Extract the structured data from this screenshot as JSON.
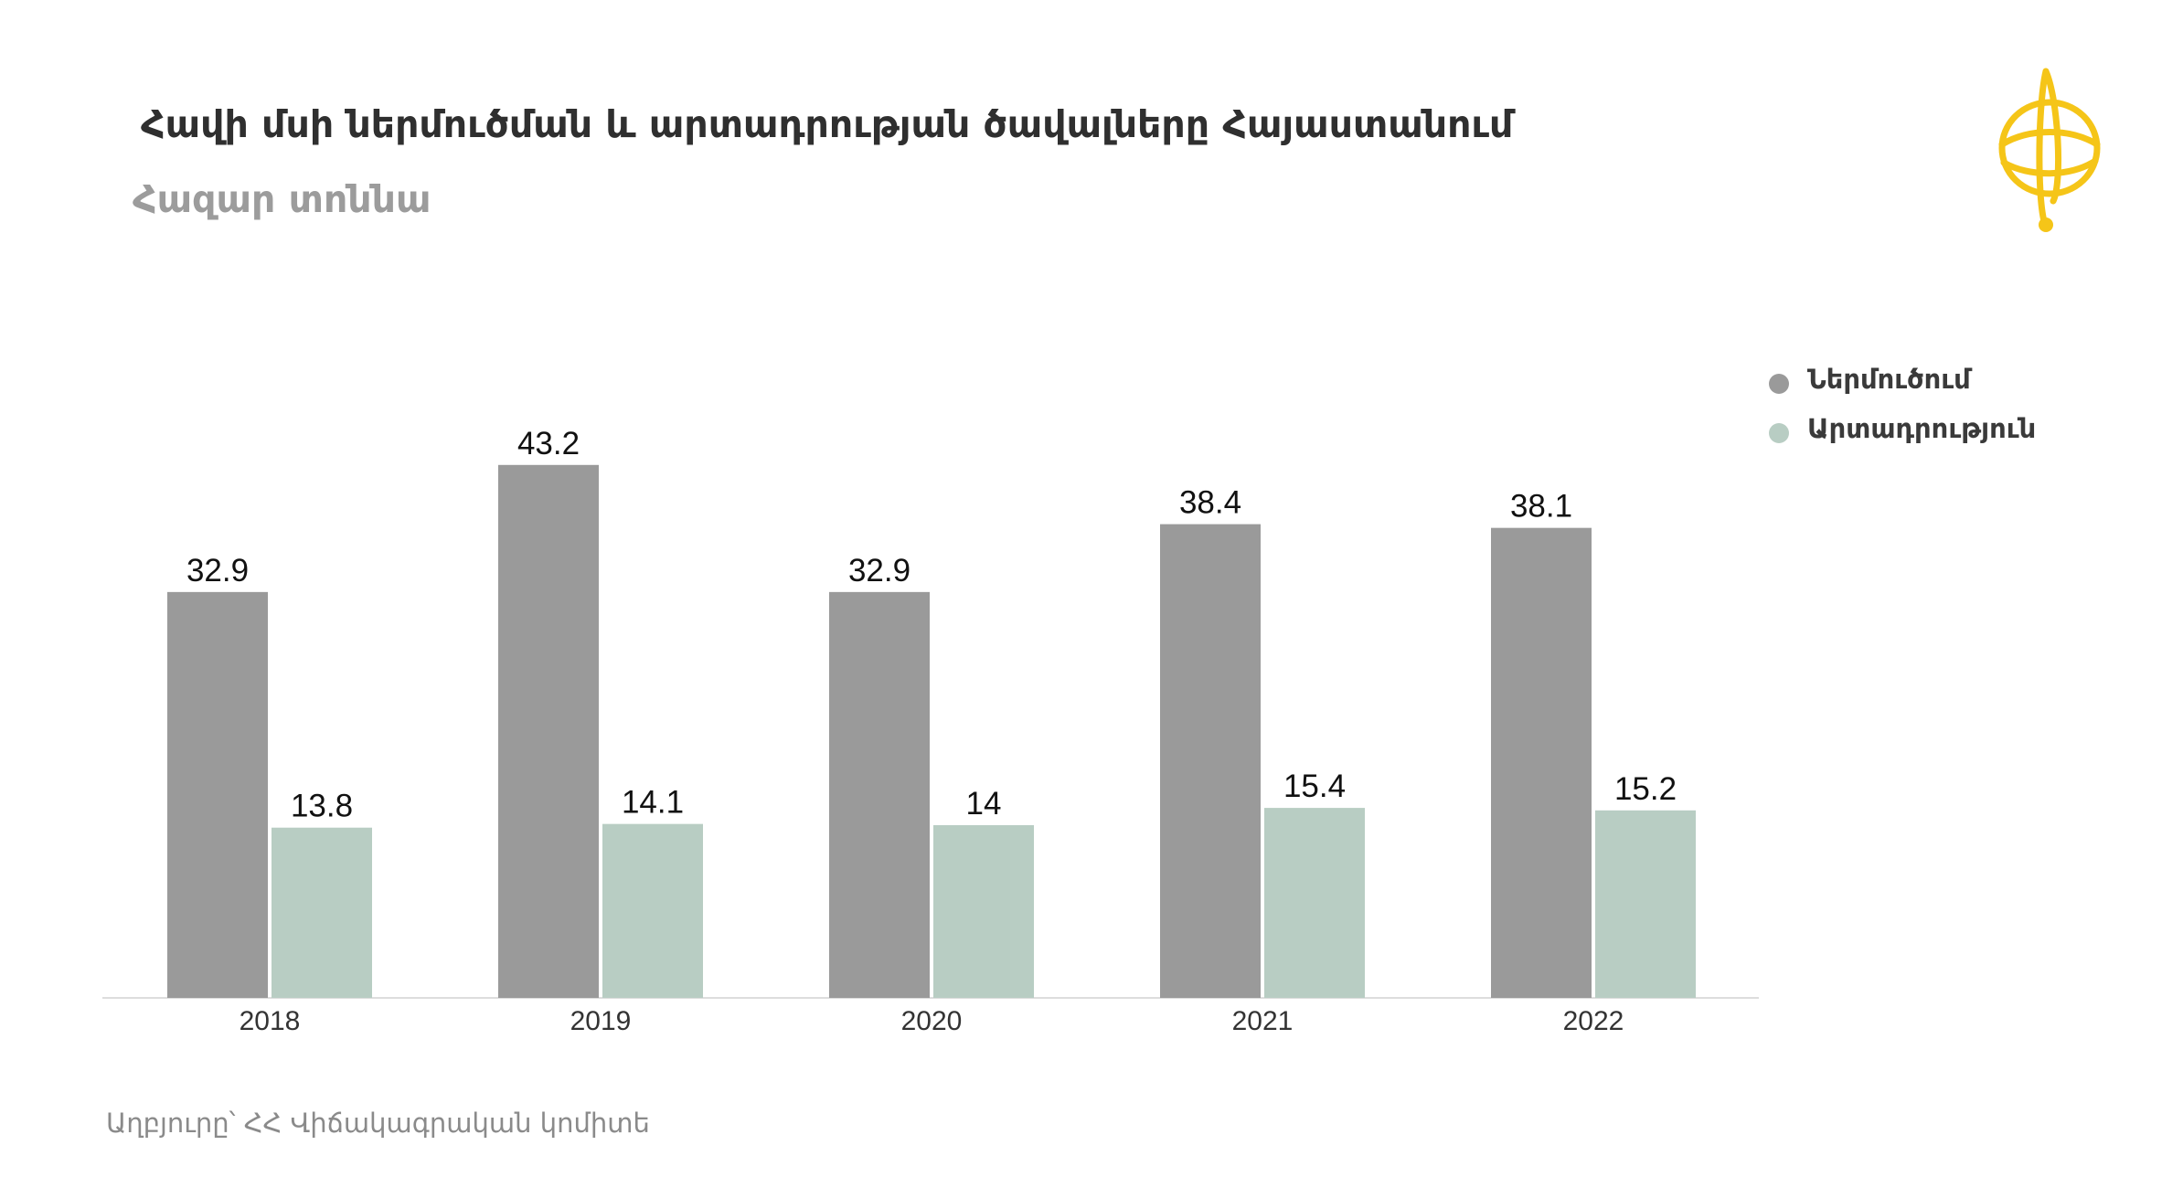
{
  "title": "Հավի մսի ներմուծման և արտադրության ծավալները Հայաստանում",
  "subtitle": "Հազար տոննա",
  "source": "Աղբյուրը՝ ՀՀ Վիճակագրական կոմիտե",
  "logo_icon": "globe-pin-logo-icon",
  "colors": {
    "import": "#9a9a9a",
    "production": "#b8cdc3",
    "logo": "#f5c518",
    "axis": "#dddddd"
  },
  "legend": {
    "items": [
      {
        "label": "Ներմուծում",
        "color": "#9a9a9a"
      },
      {
        "label": "Արտադրություն",
        "color": "#b8cdc3"
      }
    ],
    "position": "top-right"
  },
  "chart_data": {
    "type": "bar",
    "categories": [
      "2018",
      "2019",
      "2020",
      "2021",
      "2022"
    ],
    "series": [
      {
        "name": "Ներմուծում",
        "values": [
          32.9,
          43.2,
          32.9,
          38.4,
          38.1
        ]
      },
      {
        "name": "Արտադրություն",
        "values": [
          13.8,
          14.1,
          14,
          15.4,
          15.2
        ]
      }
    ],
    "value_labels": [
      [
        "32.9",
        "43.2",
        "32.9",
        "38.4",
        "38.1"
      ],
      [
        "13.8",
        "14.1",
        "14",
        "15.4",
        "15.2"
      ]
    ],
    "ylim": [
      0,
      45
    ],
    "grid": false,
    "legend_position": "top-right"
  }
}
